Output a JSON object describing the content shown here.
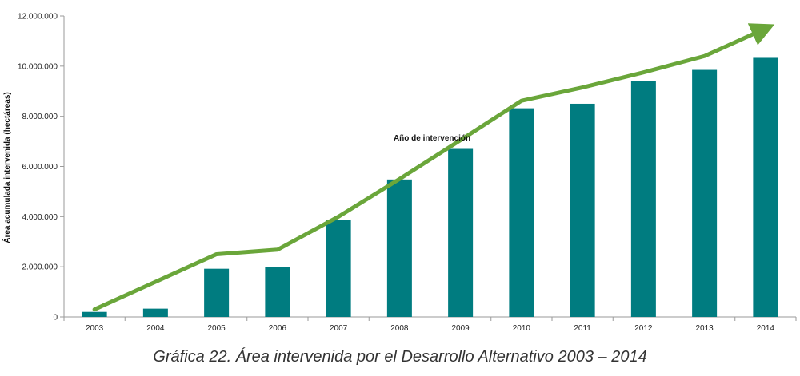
{
  "chart_data": {
    "type": "bar",
    "categories": [
      "2003",
      "2004",
      "2005",
      "2006",
      "2007",
      "2008",
      "2009",
      "2010",
      "2011",
      "2012",
      "2013",
      "2014"
    ],
    "values": [
      200000,
      330000,
      1920000,
      1990000,
      3870000,
      5480000,
      6700000,
      8320000,
      8500000,
      9420000,
      9850000,
      10330000
    ],
    "trend_line": [
      300000,
      1400000,
      2500000,
      2680000,
      4000000,
      5500000,
      7050000,
      8620000,
      9150000,
      9750000,
      10400000,
      11500000
    ],
    "xlabel": "Año de intervención",
    "ylabel": "Área acumulada intervenida (hectáreas)",
    "ylim": [
      0,
      12000000
    ],
    "yticks": [
      "0",
      "2.000.000",
      "4.000.000",
      "6.000.000",
      "8.000.000",
      "10.000.000",
      "12.000.000"
    ],
    "bar_color": "#007c80",
    "trend_color": "#6aa63a",
    "grid": false
  },
  "caption": "Gráfica 22. Área intervenida por el Desarrollo Alternativo 2003 – 2014"
}
